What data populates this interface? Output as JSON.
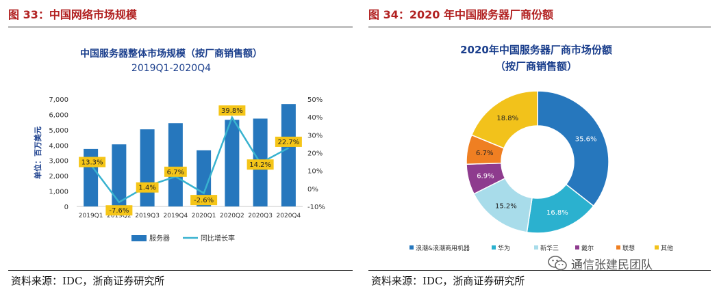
{
  "left_figure": {
    "heading": "图 33：中国网络市场规模",
    "source": "资料来源：IDC，浙商证券研究所"
  },
  "right_figure": {
    "heading": "图 34：2020 年中国服务器厂商份额",
    "source": "资料来源：IDC，浙商证券研究所"
  },
  "watermark": {
    "text": "通信张建民团队",
    "icon": "wechat-icon"
  },
  "colors": {
    "heading_red": "#b22222",
    "bar_blue": "#2677bd",
    "line_teal": "#38b2cf",
    "label_yellow": "#f5c518",
    "title_navy": "#1a3e8c"
  },
  "chart_data": [
    {
      "type": "bar",
      "title": "中国服务器整体市场规模（按厂商销售额）",
      "subtitle": "2019Q1-2020Q4",
      "categories": [
        "2019Q1",
        "2019Q2",
        "2019Q3",
        "2019Q4",
        "2020Q1",
        "2020Q2",
        "2020Q3",
        "2020Q4"
      ],
      "series": [
        {
          "name": "服务器",
          "kind": "bar",
          "axis": "left",
          "values": [
            3750,
            4050,
            5030,
            5430,
            3660,
            5650,
            5730,
            6680
          ]
        },
        {
          "name": "同比增长率",
          "kind": "line",
          "axis": "right",
          "values": [
            13.3,
            -7.6,
            1.4,
            6.7,
            -2.6,
            39.8,
            14.2,
            22.7
          ],
          "data_labels": [
            "13.3%",
            "-7.6%",
            "1.4%",
            "6.7%",
            "-2.6%",
            "39.8%",
            "14.2%",
            "22.7%"
          ]
        }
      ],
      "ylabel": "单位：百万美元",
      "ylim": [
        0,
        7000
      ],
      "yticks": [
        "0",
        "1,000",
        "2,000",
        "3,000",
        "4,000",
        "5,000",
        "6,000",
        "7,000"
      ],
      "y2lim": [
        -10,
        50
      ],
      "y2ticks": [
        "-10%",
        "0%",
        "10%",
        "20%",
        "30%",
        "40%",
        "50%"
      ],
      "legend": [
        "服务器",
        "同比增长率"
      ],
      "legend_position": "bottom",
      "grid": false
    },
    {
      "type": "pie",
      "donut": true,
      "title": "2020年中国服务器厂商市场份额",
      "subtitle": "（按厂商销售额）",
      "labels": [
        "浪潮&浪潮商用机器",
        "华为",
        "新华三",
        "戴尔",
        "联想",
        "其他"
      ],
      "values": [
        35.6,
        16.8,
        15.2,
        6.9,
        6.7,
        18.8
      ],
      "data_labels": [
        "35.6%",
        "16.8%",
        "15.2%",
        "6.9%",
        "6.7%",
        "18.8%"
      ],
      "colors": [
        "#2677bd",
        "#2bb1cf",
        "#a8dcea",
        "#8e3b8e",
        "#ef7f22",
        "#f2c21b"
      ],
      "legend_position": "bottom"
    }
  ]
}
